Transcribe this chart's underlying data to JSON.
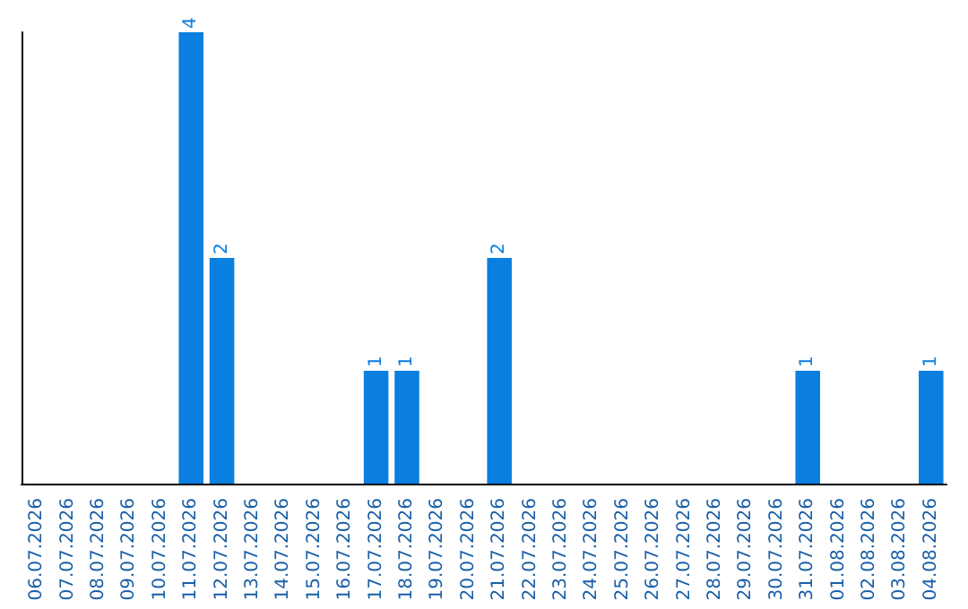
{
  "chart_data": {
    "type": "bar",
    "categories": [
      "06.07.2026",
      "07.07.2026",
      "08.07.2026",
      "09.07.2026",
      "10.07.2026",
      "11.07.2026",
      "12.07.2026",
      "13.07.2026",
      "14.07.2026",
      "15.07.2026",
      "16.07.2026",
      "17.07.2026",
      "18.07.2026",
      "19.07.2026",
      "20.07.2026",
      "21.07.2026",
      "22.07.2026",
      "23.07.2026",
      "24.07.2026",
      "25.07.2026",
      "26.07.2026",
      "27.07.2026",
      "28.07.2026",
      "29.07.2026",
      "30.07.2026",
      "31.07.2026",
      "01.08.2026",
      "02.08.2026",
      "03.08.2026",
      "04.08.2026"
    ],
    "values": [
      0,
      0,
      0,
      0,
      0,
      4,
      2,
      0,
      0,
      0,
      0,
      1,
      1,
      0,
      0,
      2,
      0,
      0,
      0,
      0,
      0,
      0,
      0,
      0,
      0,
      1,
      0,
      0,
      0,
      1
    ],
    "value_labels": [
      null,
      null,
      null,
      null,
      null,
      "4",
      "2",
      null,
      null,
      null,
      null,
      "1",
      "1",
      null,
      null,
      "2",
      null,
      null,
      null,
      null,
      null,
      null,
      null,
      null,
      null,
      "1",
      null,
      null,
      null,
      "1"
    ],
    "color": "#0a7fe0",
    "tick_labels": "x",
    "grid": false
  }
}
